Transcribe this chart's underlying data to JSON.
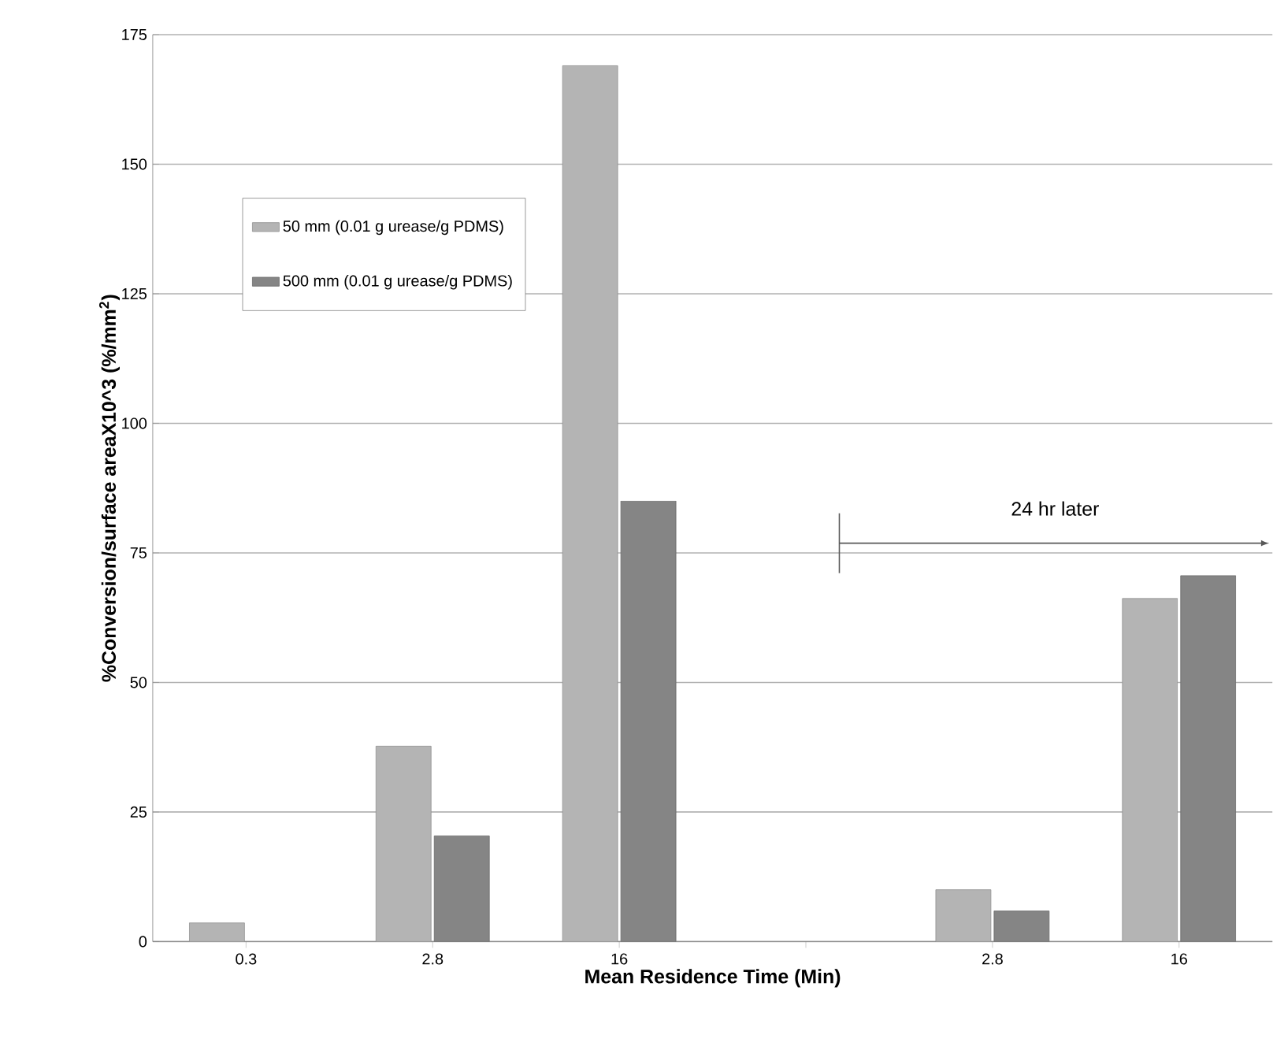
{
  "chart_data": {
    "type": "bar",
    "xlabel": "Mean Residence Time (Min)",
    "ylabel": "%Conversion/surface areaX10^3 (%/mm$^{2}$)",
    "categories": [
      "0.3",
      "2.8",
      "16",
      null,
      "2.8",
      "16"
    ],
    "series": [
      {
        "name": "50 mm (0.01 g urease/g PDMS)",
        "color": "#b4b4b4",
        "values": [
          3.6,
          37.7,
          169,
          null,
          10,
          66.2
        ]
      },
      {
        "name": "500 mm (0.01 g urease/g PDMS)",
        "color": "#858585",
        "values": [
          null,
          20.4,
          85,
          null,
          5.9,
          70.6
        ]
      }
    ],
    "ylim": [
      0,
      175
    ],
    "yticks": [
      0,
      25,
      50,
      75,
      100,
      125,
      150,
      175
    ],
    "grid": "y",
    "legend": "top left",
    "annotations": [
      "24 hr later"
    ]
  }
}
